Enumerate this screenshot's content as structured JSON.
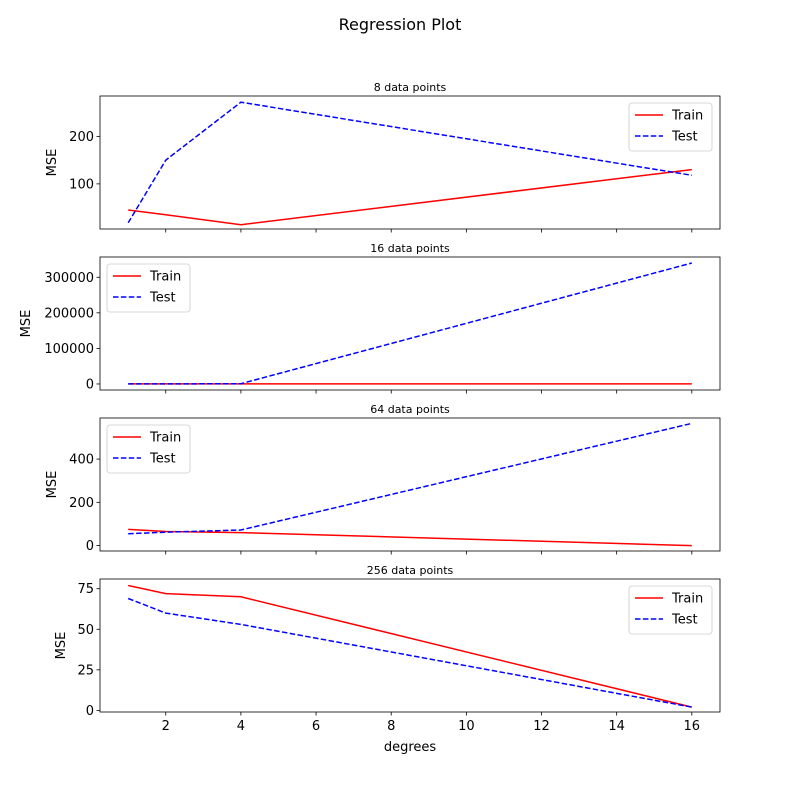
{
  "suptitle": "Regression Plot",
  "chart_data": [
    {
      "type": "line",
      "title": "8 data points",
      "xlabel": "",
      "ylabel": "MSE",
      "x": [
        1,
        2,
        4,
        16
      ],
      "xlim": [
        0.25,
        16.75
      ],
      "ylim": [
        5,
        285
      ],
      "yticks": [
        100,
        200
      ],
      "legend": "top-right",
      "series": [
        {
          "name": "Train",
          "color": "#ff0000",
          "dash": "solid",
          "values": [
            45,
            35,
            14,
            130
          ]
        },
        {
          "name": "Test",
          "color": "#0000ff",
          "dash": "dashed",
          "values": [
            18,
            150,
            272,
            118
          ]
        }
      ]
    },
    {
      "type": "line",
      "title": "16 data points",
      "xlabel": "",
      "ylabel": "MSE",
      "x": [
        1,
        2,
        4,
        16
      ],
      "xlim": [
        0.25,
        16.75
      ],
      "ylim": [
        -17000,
        357000
      ],
      "yticks": [
        0,
        100000,
        200000,
        300000
      ],
      "legend": "top-left",
      "series": [
        {
          "name": "Train",
          "color": "#ff0000",
          "dash": "solid",
          "values": [
            50,
            50,
            50,
            50
          ]
        },
        {
          "name": "Test",
          "color": "#0000ff",
          "dash": "dashed",
          "values": [
            100,
            150,
            800,
            340000
          ]
        }
      ]
    },
    {
      "type": "line",
      "title": "64 data points",
      "xlabel": "",
      "ylabel": "MSE",
      "x": [
        1,
        2,
        4,
        16
      ],
      "xlim": [
        0.25,
        16.75
      ],
      "ylim": [
        -25,
        590
      ],
      "yticks": [
        0,
        200,
        400
      ],
      "legend": "top-left",
      "series": [
        {
          "name": "Train",
          "color": "#ff0000",
          "dash": "solid",
          "values": [
            75,
            65,
            60,
            0
          ]
        },
        {
          "name": "Test",
          "color": "#0000ff",
          "dash": "dashed",
          "values": [
            55,
            62,
            72,
            565
          ]
        }
      ]
    },
    {
      "type": "line",
      "title": "256 data points",
      "xlabel": "degrees",
      "ylabel": "MSE",
      "x": [
        1,
        2,
        4,
        16
      ],
      "xlim": [
        0.25,
        16.75
      ],
      "ylim": [
        -1,
        81
      ],
      "yticks": [
        0,
        25,
        50,
        75
      ],
      "xticks": [
        2,
        4,
        6,
        8,
        10,
        12,
        14,
        16
      ],
      "legend": "top-right",
      "series": [
        {
          "name": "Train",
          "color": "#ff0000",
          "dash": "solid",
          "values": [
            77,
            72,
            70,
            2
          ]
        },
        {
          "name": "Test",
          "color": "#0000ff",
          "dash": "dashed",
          "values": [
            69,
            60,
            53,
            2
          ]
        }
      ]
    }
  ]
}
